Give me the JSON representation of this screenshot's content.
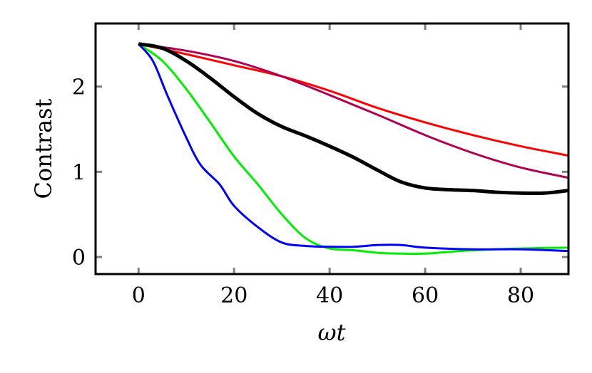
{
  "chart_data": {
    "type": "line",
    "title": "",
    "xlabel": "ωt",
    "ylabel": "Contrast",
    "xlim": [
      -9,
      90
    ],
    "ylim": [
      -0.2,
      2.74
    ],
    "xticks": [
      0,
      20,
      40,
      60,
      80
    ],
    "yticks": [
      0,
      1,
      2
    ],
    "xtick_labels": [
      "0",
      "20",
      "40",
      "60",
      "80"
    ],
    "ytick_labels": [
      "0",
      "1",
      "2"
    ],
    "grid": false,
    "legend": "none",
    "series": [
      {
        "color": "#ff0000",
        "width": 3,
        "x": [
          0,
          10,
          20,
          30,
          40,
          50,
          60,
          70,
          80,
          90
        ],
        "y": [
          2.5,
          2.38,
          2.25,
          2.12,
          1.95,
          1.75,
          1.58,
          1.43,
          1.3,
          1.19
        ]
      },
      {
        "color": "#b0004f",
        "width": 3,
        "x": [
          0,
          10,
          20,
          30,
          40,
          50,
          60,
          70,
          80,
          90
        ],
        "y": [
          2.5,
          2.42,
          2.3,
          2.12,
          1.9,
          1.67,
          1.43,
          1.22,
          1.05,
          0.93
        ]
      },
      {
        "color": "#00ee00",
        "width": 3,
        "x": [
          0,
          5,
          10,
          15,
          20,
          25,
          30,
          35,
          40,
          45,
          50,
          55,
          60,
          70,
          80,
          90
        ],
        "y": [
          2.5,
          2.3,
          1.97,
          1.58,
          1.18,
          0.85,
          0.5,
          0.22,
          0.1,
          0.08,
          0.05,
          0.04,
          0.04,
          0.08,
          0.1,
          0.11
        ]
      },
      {
        "color": "#0000ff",
        "width": 3,
        "x": [
          0,
          3,
          6,
          10,
          13,
          17,
          20,
          25,
          30,
          35,
          40,
          45,
          50,
          55,
          60,
          70,
          80,
          90
        ],
        "y": [
          2.5,
          2.3,
          1.9,
          1.4,
          1.08,
          0.85,
          0.6,
          0.35,
          0.17,
          0.13,
          0.12,
          0.12,
          0.14,
          0.14,
          0.11,
          0.09,
          0.09,
          0.07
        ]
      },
      {
        "color": "#000000",
        "width": 5,
        "x": [
          0,
          5,
          10,
          15,
          20,
          25,
          30,
          35,
          40,
          45,
          50,
          55,
          60,
          65,
          70,
          75,
          80,
          85,
          90
        ],
        "y": [
          2.5,
          2.45,
          2.3,
          2.1,
          1.88,
          1.68,
          1.53,
          1.42,
          1.3,
          1.17,
          1.02,
          0.88,
          0.81,
          0.79,
          0.78,
          0.76,
          0.75,
          0.75,
          0.78
        ]
      }
    ]
  }
}
